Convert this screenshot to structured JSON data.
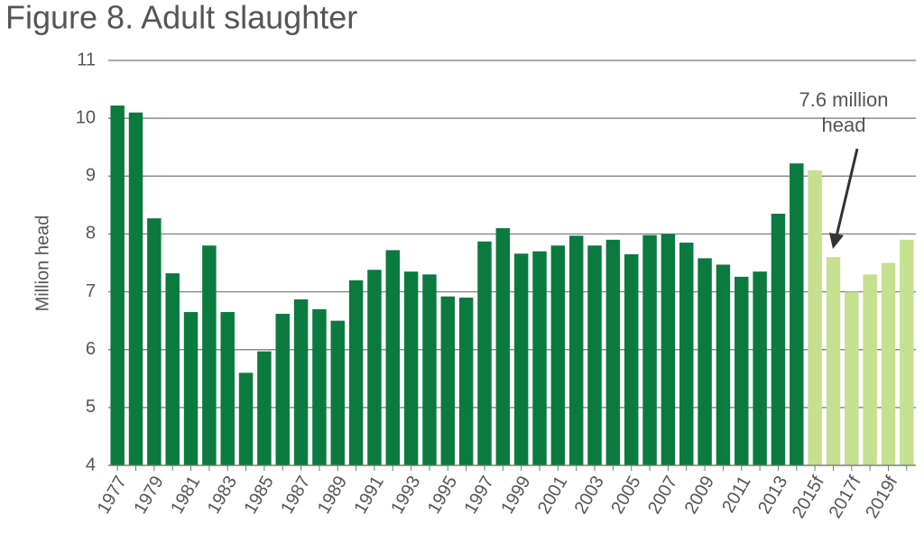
{
  "chart_data": {
    "type": "bar",
    "title": "Figure 8. Adult slaughter",
    "y_label": "Million head",
    "categories": [
      "1977",
      null,
      "1979",
      null,
      "1981",
      null,
      "1983",
      null,
      "1985",
      null,
      "1987",
      null,
      "1989",
      null,
      "1991",
      null,
      "1993",
      null,
      "1995",
      null,
      "1997",
      null,
      "1999",
      null,
      "2001",
      null,
      "2003",
      null,
      "2005",
      null,
      "2007",
      null,
      "2009",
      null,
      "2011",
      null,
      "2013",
      null,
      "2015f",
      null,
      "2017f",
      null,
      "2019f",
      null
    ],
    "values": [
      10.22,
      10.1,
      8.27,
      7.32,
      6.65,
      7.8,
      6.65,
      5.6,
      5.97,
      6.62,
      6.87,
      6.7,
      6.5,
      7.2,
      7.38,
      7.72,
      7.35,
      7.3,
      6.92,
      6.9,
      7.87,
      8.1,
      7.66,
      7.7,
      7.8,
      7.97,
      7.8,
      7.9,
      7.65,
      7.98,
      8.0,
      7.85,
      7.58,
      7.47,
      7.26,
      7.35,
      8.35,
      9.22,
      9.1,
      7.6,
      7.0,
      7.3,
      7.5,
      7.9
    ],
    "colors": [
      "#0b7a3e",
      "#0b7a3e",
      "#0b7a3e",
      "#0b7a3e",
      "#0b7a3e",
      "#0b7a3e",
      "#0b7a3e",
      "#0b7a3e",
      "#0b7a3e",
      "#0b7a3e",
      "#0b7a3e",
      "#0b7a3e",
      "#0b7a3e",
      "#0b7a3e",
      "#0b7a3e",
      "#0b7a3e",
      "#0b7a3e",
      "#0b7a3e",
      "#0b7a3e",
      "#0b7a3e",
      "#0b7a3e",
      "#0b7a3e",
      "#0b7a3e",
      "#0b7a3e",
      "#0b7a3e",
      "#0b7a3e",
      "#0b7a3e",
      "#0b7a3e",
      "#0b7a3e",
      "#0b7a3e",
      "#0b7a3e",
      "#0b7a3e",
      "#0b7a3e",
      "#0b7a3e",
      "#0b7a3e",
      "#0b7a3e",
      "#0b7a3e",
      "#0b7a3e",
      "#c5e08f",
      "#c5e08f",
      "#c5e08f",
      "#c5e08f",
      "#c5e08f",
      "#c5e08f"
    ],
    "ylim": [
      4,
      11
    ],
    "yticks": [
      4,
      5,
      6,
      7,
      8,
      9,
      10,
      11
    ],
    "grid": true,
    "annotation": [
      "7.6 million",
      "head"
    ]
  }
}
